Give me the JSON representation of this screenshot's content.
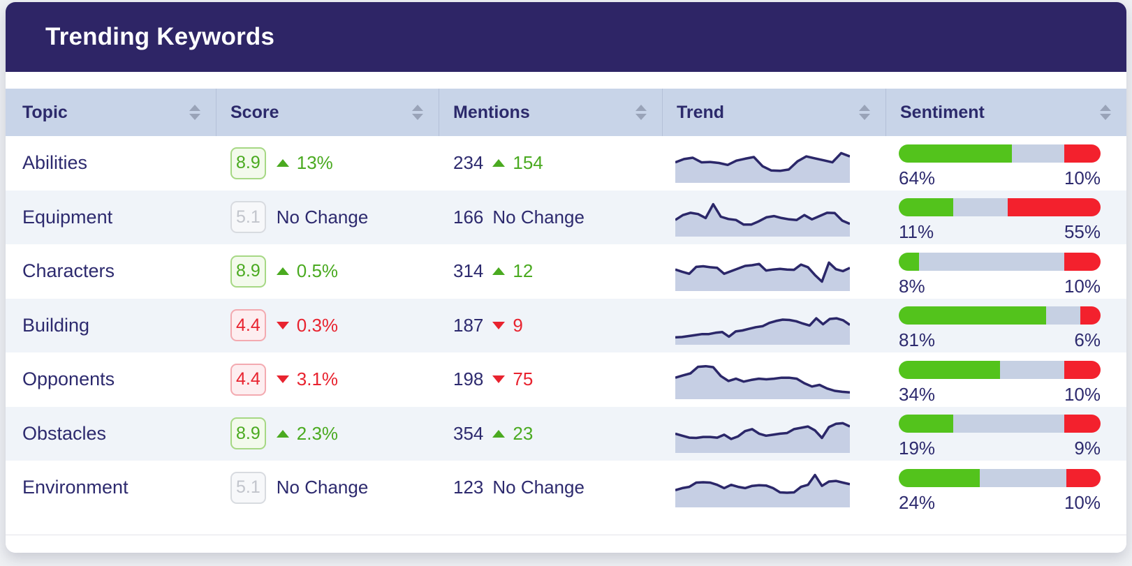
{
  "title": "Trending Keywords",
  "colors": {
    "card_header_bg": "#2e2566",
    "navy_text": "#2d2a6e",
    "table_header_bg": "#c8d4e8",
    "column_divider": "#b4c0d8",
    "sort_icon": "#99a3b8",
    "row_alt_bg": "#f0f4f9",
    "positive_text": "#4aaa20",
    "positive_badge_bg": "#f3faec",
    "positive_badge_border": "#a6d884",
    "negative_text": "#e8232f",
    "negative_badge_bg": "#fdeef0",
    "negative_badge_border": "#f3aab0",
    "neutral_badge_text": "#c2c5cc",
    "neutral_badge_bg": "#f7f8fa",
    "neutral_badge_border": "#d8dbe0",
    "bar_positive": "#53c31c",
    "bar_neutral": "#c6d0e3",
    "bar_negative": "#f3212d",
    "spark_line": "#2b2769",
    "spark_fill": "#c6cfe4"
  },
  "table": {
    "columns": [
      {
        "label": "Topic"
      },
      {
        "label": "Score"
      },
      {
        "label": "Mentions"
      },
      {
        "label": "Trend"
      },
      {
        "label": "Sentiment"
      }
    ]
  },
  "rows": [
    {
      "topic": "Abilities",
      "score": "8.9",
      "score_change": "13%",
      "mentions": "234",
      "mentions_change": "154",
      "direction": "up",
      "sentiment": {
        "positive": "64%",
        "negative": "10%",
        "bar": {
          "green": 56,
          "gray": 26,
          "red": 18
        }
      },
      "trend": [
        52,
        62,
        66,
        52,
        53,
        50,
        44,
        57,
        63,
        68,
        40,
        27,
        26,
        30,
        55,
        70,
        64,
        58,
        52,
        80,
        70
      ]
    },
    {
      "topic": "Equipment",
      "score": "5.1",
      "score_change": "No Change",
      "mentions": "166",
      "mentions_change": "No Change",
      "direction": "none",
      "sentiment": {
        "positive": "11%",
        "negative": "55%",
        "bar": {
          "green": 27,
          "gray": 27,
          "red": 46
        }
      },
      "trend": [
        40,
        55,
        62,
        58,
        46,
        88,
        50,
        43,
        40,
        26,
        26,
        36,
        48,
        52,
        46,
        42,
        40,
        55,
        42,
        52,
        62,
        61,
        38,
        28
      ]
    },
    {
      "topic": "Characters",
      "score": "8.9",
      "score_change": "0.5%",
      "mentions": "314",
      "mentions_change": "12",
      "direction": "up",
      "sentiment": {
        "positive": "8%",
        "negative": "10%",
        "bar": {
          "green": 10,
          "gray": 72,
          "red": 18
        }
      },
      "trend": [
        55,
        48,
        42,
        63,
        65,
        62,
        60,
        42,
        50,
        58,
        66,
        68,
        72,
        52,
        55,
        57,
        55,
        54,
        70,
        62,
        38,
        18,
        76,
        56,
        50,
        60
      ]
    },
    {
      "topic": "Building",
      "score": "4.4",
      "score_change": "0.3%",
      "mentions": "187",
      "mentions_change": "9",
      "direction": "down",
      "sentiment": {
        "positive": "81%",
        "negative": "6%",
        "bar": {
          "green": 73,
          "gray": 17,
          "red": 10
        }
      },
      "trend": [
        12,
        13,
        16,
        19,
        22,
        22,
        26,
        28,
        14,
        30,
        33,
        38,
        43,
        46,
        56,
        62,
        66,
        65,
        61,
        54,
        48,
        70,
        52,
        68,
        70,
        64,
        50
      ]
    },
    {
      "topic": "Opponents",
      "score": "4.4",
      "score_change": "3.1%",
      "mentions": "198",
      "mentions_change": "75",
      "direction": "down",
      "sentiment": {
        "positive": "34%",
        "negative": "10%",
        "bar": {
          "green": 50,
          "gray": 32,
          "red": 18
        }
      },
      "trend": [
        55,
        62,
        68,
        88,
        90,
        87,
        60,
        45,
        52,
        43,
        48,
        52,
        50,
        52,
        55,
        55,
        52,
        38,
        28,
        33,
        22,
        15,
        12,
        10
      ]
    },
    {
      "topic": "Obstacles",
      "score": "8.9",
      "score_change": "2.3%",
      "mentions": "354",
      "mentions_change": "23",
      "direction": "up",
      "sentiment": {
        "positive": "19%",
        "negative": "9%",
        "bar": {
          "green": 27,
          "gray": 55,
          "red": 18
        }
      },
      "trend": [
        48,
        42,
        36,
        35,
        38,
        38,
        36,
        45,
        32,
        40,
        56,
        62,
        48,
        42,
        45,
        48,
        50,
        62,
        66,
        70,
        58,
        35,
        68,
        78,
        80,
        70
      ]
    },
    {
      "topic": "Environment",
      "score": "5.1",
      "score_change": "No Change",
      "mentions": "123",
      "mentions_change": "No Change",
      "direction": "none",
      "sentiment": {
        "positive": "24%",
        "negative": "10%",
        "bar": {
          "green": 40,
          "gray": 43,
          "red": 17
        }
      },
      "trend": [
        42,
        48,
        52,
        65,
        66,
        65,
        58,
        48,
        58,
        52,
        48,
        55,
        57,
        56,
        48,
        35,
        34,
        35,
        52,
        58,
        88,
        55,
        68,
        70,
        65,
        60
      ]
    }
  ]
}
